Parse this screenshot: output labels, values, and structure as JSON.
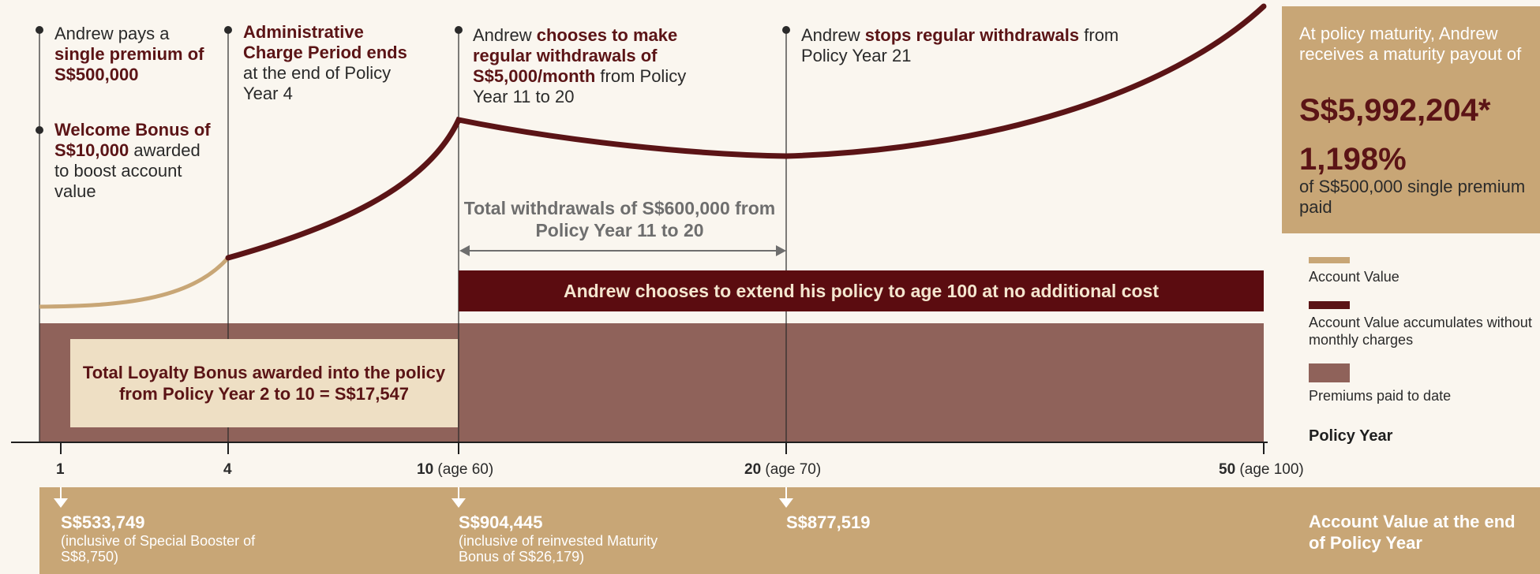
{
  "colors": {
    "background": "#faf6ef",
    "account_value_light": "#c8a676",
    "account_value_dark": "#5b1416",
    "premiums_paid": "#8f625a",
    "extend_bar": "#5b0c10",
    "loyalty_box": "#eedfc4",
    "maturity_box": "#c8a676"
  },
  "events": {
    "premium": {
      "pre": "Andrew pays a",
      "bold": "single premium of S$500,000"
    },
    "welcome": {
      "bold": "Welcome Bonus of S$10,000",
      "post": "awarded to boost account value"
    },
    "admin": {
      "bold": "Administrative Charge Period ends",
      "post": "at the end of Policy Year 4"
    },
    "withdraw_start": {
      "pre": "Andrew",
      "bold": "chooses to make regular withdrawals of S$5,000/month",
      "post": "from Policy Year 11 to 20"
    },
    "withdraw_stop": {
      "pre": "Andrew",
      "bold": "stops regular withdrawals",
      "post": "from Policy Year 21"
    }
  },
  "maturity": {
    "intro": "At policy maturity, Andrew receives a maturity payout of",
    "amount": "S$5,992,204*",
    "percent": "1,198%",
    "of_text": "of S$500,000 single premium paid"
  },
  "withdrawals_total": "Total withdrawals of S$600,000 from Policy Year 11 to 20",
  "extend_text": "Andrew chooses to extend his policy to age 100 at no additional cost",
  "loyalty_bonus": "Total Loyalty Bonus awarded into the policy from Policy Year 2 to 10 = S$17,547",
  "legend": {
    "account_value": "Account Value",
    "account_value_no_charges": "Account Value accumulates without monthly charges",
    "premiums_paid": "Premiums paid to date"
  },
  "axis": {
    "title": "Policy Year",
    "ticks": [
      {
        "year": "1",
        "age": ""
      },
      {
        "year": "4",
        "age": ""
      },
      {
        "year": "10",
        "age": "(age 60)"
      },
      {
        "year": "20",
        "age": "(age 70)"
      },
      {
        "year": "50",
        "age": "(age 100)"
      }
    ]
  },
  "account_values": {
    "title": "Account Value at the end of Policy Year",
    "y1": {
      "value": "S$533,749",
      "note": "(inclusive of Special Booster of S$8,750)"
    },
    "y10": {
      "value": "S$904,445",
      "note": "(inclusive of reinvested Maturity Bonus of S$26,179)"
    },
    "y20": {
      "value": "S$877,519",
      "note": ""
    }
  }
}
